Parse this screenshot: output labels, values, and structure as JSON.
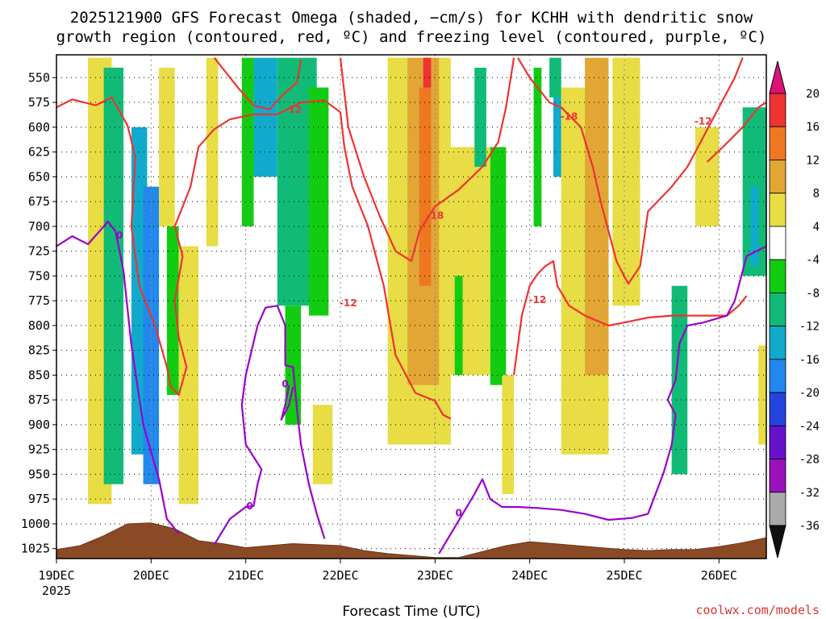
{
  "chart_data": {
    "type": "heatmap",
    "title_line1": "2025121900 GFS Forecast Omega (shaded, −cm/s) for KCHH with dendritic snow",
    "title_line2": "growth region (contoured, red, ºC) and freezing level (contoured, purple, ºC)",
    "xlabel": "Forecast Time (UTC)",
    "x_ticks": [
      "19DEC",
      "20DEC",
      "21DEC",
      "22DEC",
      "23DEC",
      "24DEC",
      "25DEC",
      "26DEC"
    ],
    "x_year": "2025",
    "x_range_hours": [
      0,
      180
    ],
    "y_ticks": [
      "550",
      "575",
      "600",
      "625",
      "650",
      "675",
      "700",
      "725",
      "750",
      "775",
      "800",
      "825",
      "850",
      "875",
      "900",
      "925",
      "950",
      "975",
      "1000",
      "1025"
    ],
    "y_range_hpa": [
      527,
      1035
    ],
    "colorbar_labels": [
      "20",
      "16",
      "12",
      "8",
      "4",
      "-4",
      "-8",
      "-12",
      "-16",
      "-20",
      "-24",
      "-28",
      "-32",
      "-36"
    ],
    "colorbar_colors": [
      "#dd1177",
      "#ee3333",
      "#ee7722",
      "#e2a635",
      "#e8dd44",
      "#ffffff",
      "#11cc11",
      "#11bb77",
      "#11aacc",
      "#2288ee",
      "#2244dd",
      "#6611cc",
      "#9911bb",
      "#aaaaaa",
      "#111111"
    ],
    "bands": [
      {
        "x": [
          8,
          14
        ],
        "p": [
          530,
          980
        ],
        "v": 6
      },
      {
        "x": [
          12,
          17
        ],
        "p": [
          540,
          960
        ],
        "v": -10
      },
      {
        "x": [
          19,
          23
        ],
        "p": [
          600,
          930
        ],
        "v": -14
      },
      {
        "x": [
          22,
          26
        ],
        "p": [
          660,
          960
        ],
        "v": -16
      },
      {
        "x": [
          26,
          30
        ],
        "p": [
          540,
          700
        ],
        "v": 5
      },
      {
        "x": [
          28,
          31
        ],
        "p": [
          700,
          870
        ],
        "v": -6
      },
      {
        "x": [
          31,
          36
        ],
        "p": [
          720,
          980
        ],
        "v": 6
      },
      {
        "x": [
          38,
          41
        ],
        "p": [
          530,
          720
        ],
        "v": 5
      },
      {
        "x": [
          47,
          50
        ],
        "p": [
          530,
          700
        ],
        "v": -6
      },
      {
        "x": [
          50,
          56
        ],
        "p": [
          530,
          650
        ],
        "v": -12
      },
      {
        "x": [
          56,
          66
        ],
        "p": [
          530,
          780
        ],
        "v": -8
      },
      {
        "x": [
          64,
          69
        ],
        "p": [
          560,
          790
        ],
        "v": -6
      },
      {
        "x": [
          58,
          62
        ],
        "p": [
          780,
          900
        ],
        "v": -6
      },
      {
        "x": [
          65,
          70
        ],
        "p": [
          880,
          960
        ],
        "v": 5
      },
      {
        "x": [
          84,
          100
        ],
        "p": [
          530,
          920
        ],
        "v": 6
      },
      {
        "x": [
          89,
          97
        ],
        "p": [
          530,
          860
        ],
        "v": 10
      },
      {
        "x": [
          92,
          95
        ],
        "p": [
          560,
          760
        ],
        "v": 14
      },
      {
        "x": [
          93,
          95
        ],
        "p": [
          530,
          560
        ],
        "v": 18
      },
      {
        "x": [
          100,
          110
        ],
        "p": [
          620,
          850
        ],
        "v": 5
      },
      {
        "x": [
          101,
          103
        ],
        "p": [
          750,
          850
        ],
        "v": -6
      },
      {
        "x": [
          106,
          109
        ],
        "p": [
          540,
          640
        ],
        "v": -8
      },
      {
        "x": [
          110,
          114
        ],
        "p": [
          620,
          860
        ],
        "v": -7
      },
      {
        "x": [
          113,
          116
        ],
        "p": [
          850,
          970
        ],
        "v": 5
      },
      {
        "x": [
          121,
          123
        ],
        "p": [
          540,
          700
        ],
        "v": -6
      },
      {
        "x": [
          125,
          128
        ],
        "p": [
          530,
          570
        ],
        "v": -8
      },
      {
        "x": [
          126,
          128
        ],
        "p": [
          570,
          650
        ],
        "v": -12
      },
      {
        "x": [
          128,
          140
        ],
        "p": [
          560,
          930
        ],
        "v": 6
      },
      {
        "x": [
          134,
          140
        ],
        "p": [
          530,
          850
        ],
        "v": 10
      },
      {
        "x": [
          141,
          148
        ],
        "p": [
          530,
          780
        ],
        "v": 5
      },
      {
        "x": [
          156,
          160
        ],
        "p": [
          760,
          950
        ],
        "v": -8
      },
      {
        "x": [
          162,
          168
        ],
        "p": [
          600,
          700
        ],
        "v": 6
      },
      {
        "x": [
          174,
          180
        ],
        "p": [
          580,
          750
        ],
        "v": -8
      },
      {
        "x": [
          176,
          178
        ],
        "p": [
          660,
          740
        ],
        "v": -14
      },
      {
        "x": [
          178,
          180
        ],
        "p": [
          820,
          920
        ],
        "v": 5
      }
    ],
    "terrain_pressure": [
      {
        "h": 0,
        "p": 1026
      },
      {
        "h": 6,
        "p": 1022
      },
      {
        "h": 12,
        "p": 1012
      },
      {
        "h": 18,
        "p": 1000
      },
      {
        "h": 24,
        "p": 999
      },
      {
        "h": 30,
        "p": 1005
      },
      {
        "h": 36,
        "p": 1017
      },
      {
        "h": 42,
        "p": 1020
      },
      {
        "h": 48,
        "p": 1024
      },
      {
        "h": 54,
        "p": 1022
      },
      {
        "h": 60,
        "p": 1020
      },
      {
        "h": 66,
        "p": 1021
      },
      {
        "h": 72,
        "p": 1022
      },
      {
        "h": 78,
        "p": 1027
      },
      {
        "h": 84,
        "p": 1030
      },
      {
        "h": 90,
        "p": 1032
      },
      {
        "h": 96,
        "p": 1034
      },
      {
        "h": 102,
        "p": 1034
      },
      {
        "h": 108,
        "p": 1028
      },
      {
        "h": 114,
        "p": 1022
      },
      {
        "h": 120,
        "p": 1018
      },
      {
        "h": 126,
        "p": 1020
      },
      {
        "h": 132,
        "p": 1022
      },
      {
        "h": 138,
        "p": 1024
      },
      {
        "h": 144,
        "p": 1026
      },
      {
        "h": 150,
        "p": 1027
      },
      {
        "h": 156,
        "p": 1026
      },
      {
        "h": 162,
        "p": 1026
      },
      {
        "h": 168,
        "p": 1023
      },
      {
        "h": 174,
        "p": 1019
      },
      {
        "h": 180,
        "p": 1014
      }
    ],
    "contours": [
      {
        "color": "#ee3333",
        "label": "-12",
        "label_at": {
          "h": 60,
          "p": 583
        },
        "points": [
          [
            0,
            580
          ],
          [
            4,
            572
          ],
          [
            10,
            578
          ],
          [
            14,
            570
          ],
          [
            18,
            598
          ],
          [
            20,
            630
          ],
          [
            19,
            700
          ],
          [
            21,
            760
          ],
          [
            25,
            800
          ],
          [
            28,
            842
          ],
          [
            29,
            862
          ],
          [
            31,
            870
          ],
          [
            33,
            842
          ],
          [
            31,
            812
          ],
          [
            30,
            775
          ],
          [
            32,
            730
          ],
          [
            30,
            700
          ],
          [
            34,
            660
          ],
          [
            36,
            620
          ],
          [
            40,
            602
          ],
          [
            44,
            592
          ],
          [
            50,
            587
          ],
          [
            56,
            587
          ],
          [
            62,
            575
          ],
          [
            68,
            573
          ],
          [
            72,
            585
          ],
          [
            73,
            620
          ],
          [
            75,
            660
          ],
          [
            79,
            700
          ],
          [
            83,
            760
          ],
          [
            86,
            830
          ],
          [
            91,
            868
          ],
          [
            96,
            876
          ],
          [
            98,
            890
          ],
          [
            100,
            894
          ]
        ]
      },
      {
        "color": "#ee3333",
        "label": "-12",
        "label_at": {
          "h": 74,
          "p": 778
        },
        "points": [
          [
            40,
            530
          ],
          [
            46,
            560
          ],
          [
            50,
            578
          ],
          [
            54,
            582
          ],
          [
            58,
            565
          ],
          [
            61,
            555
          ],
          [
            62,
            532
          ]
        ]
      },
      {
        "color": "#ee3333",
        "label": "-12",
        "label_at": {
          "h": 122,
          "p": 775
        },
        "points": [
          [
            116,
            850
          ],
          [
            118,
            790
          ],
          [
            120,
            760
          ],
          [
            122,
            748
          ],
          [
            124,
            740
          ],
          [
            126,
            735
          ],
          [
            127,
            760
          ],
          [
            130,
            780
          ],
          [
            134,
            790
          ],
          [
            140,
            800
          ],
          [
            144,
            797
          ],
          [
            150,
            792
          ],
          [
            156,
            790
          ],
          [
            164,
            790
          ],
          [
            170,
            790
          ],
          [
            173,
            780
          ],
          [
            175,
            770
          ]
        ]
      },
      {
        "color": "#ee3333",
        "label": "-12",
        "label_at": {
          "h": 164,
          "p": 595
        },
        "points": [
          [
            165,
            635
          ],
          [
            169,
            620
          ],
          [
            174,
            600
          ],
          [
            178,
            580
          ],
          [
            180,
            575
          ]
        ]
      },
      {
        "color": "#ee3333",
        "label": "-18",
        "label_at": {
          "h": 96,
          "p": 690
        },
        "points": [
          [
            72,
            530
          ],
          [
            74,
            600
          ],
          [
            78,
            650
          ],
          [
            82,
            690
          ],
          [
            86,
            725
          ],
          [
            90,
            735
          ],
          [
            92,
            705
          ],
          [
            96,
            680
          ],
          [
            102,
            663
          ],
          [
            108,
            640
          ],
          [
            112,
            615
          ],
          [
            114,
            580
          ],
          [
            116,
            530
          ]
        ]
      },
      {
        "color": "#ee3333",
        "label": "-18",
        "label_at": {
          "h": 130,
          "p": 590
        },
        "points": [
          [
            117,
            530
          ],
          [
            120,
            550
          ],
          [
            125,
            575
          ],
          [
            128,
            580
          ],
          [
            133,
            600
          ],
          [
            136,
            640
          ],
          [
            138,
            675
          ],
          [
            142,
            735
          ],
          [
            145,
            758
          ],
          [
            148,
            740
          ],
          [
            150,
            685
          ],
          [
            156,
            660
          ],
          [
            160,
            640
          ],
          [
            164,
            610
          ],
          [
            168,
            580
          ],
          [
            172,
            550
          ],
          [
            174,
            530
          ]
        ]
      },
      {
        "color": "#9900cc",
        "label": "0",
        "label_at": {
          "h": 16,
          "p": 710
        },
        "points": [
          [
            0,
            720
          ],
          [
            4,
            710
          ],
          [
            8,
            718
          ],
          [
            12,
            700
          ],
          [
            13,
            695
          ],
          [
            15,
            705
          ],
          [
            17,
            745
          ],
          [
            19,
            820
          ],
          [
            22,
            900
          ],
          [
            26,
            955
          ],
          [
            28,
            995
          ],
          [
            31,
            1010
          ]
        ]
      },
      {
        "color": "#9900cc",
        "label": "0",
        "label_at": {
          "h": 49,
          "p": 983
        },
        "points": [
          [
            40,
            1021
          ],
          [
            44,
            995
          ],
          [
            48,
            983
          ],
          [
            50,
            982
          ],
          [
            51,
            960
          ],
          [
            52,
            945
          ],
          [
            48,
            920
          ],
          [
            47,
            880
          ],
          [
            48,
            850
          ],
          [
            51,
            800
          ],
          [
            53,
            782
          ],
          [
            56,
            780
          ],
          [
            58,
            800
          ],
          [
            58,
            840
          ],
          [
            60,
            842
          ],
          [
            61,
            885
          ],
          [
            62,
            920
          ],
          [
            64,
            960
          ],
          [
            66,
            990
          ],
          [
            68,
            1015
          ]
        ]
      },
      {
        "color": "#9900cc",
        "label": "0",
        "label_at": {
          "h": 58,
          "p": 860
        },
        "points": [
          [
            59,
            860
          ],
          [
            58,
            880
          ],
          [
            57,
            895
          ],
          [
            59,
            880
          ],
          [
            60,
            862
          ]
        ]
      },
      {
        "color": "#9900cc",
        "label": "0",
        "label_at": {
          "h": 102,
          "p": 990
        },
        "points": [
          [
            97,
            1030
          ],
          [
            100,
            1010
          ],
          [
            103,
            990
          ],
          [
            106,
            970
          ],
          [
            108,
            955
          ],
          [
            110,
            975
          ],
          [
            113,
            983
          ],
          [
            117,
            983
          ],
          [
            122,
            984
          ],
          [
            128,
            986
          ],
          [
            134,
            990
          ],
          [
            140,
            996
          ],
          [
            146,
            994
          ],
          [
            150,
            990
          ],
          [
            154,
            948
          ],
          [
            156,
            920
          ],
          [
            157,
            890
          ],
          [
            155,
            875
          ],
          [
            157,
            855
          ],
          [
            158,
            818
          ],
          [
            160,
            800
          ],
          [
            164,
            797
          ],
          [
            170,
            790
          ],
          [
            172,
            775
          ],
          [
            175,
            730
          ],
          [
            180,
            720
          ]
        ]
      }
    ]
  },
  "credit": "coolwx.com/models"
}
